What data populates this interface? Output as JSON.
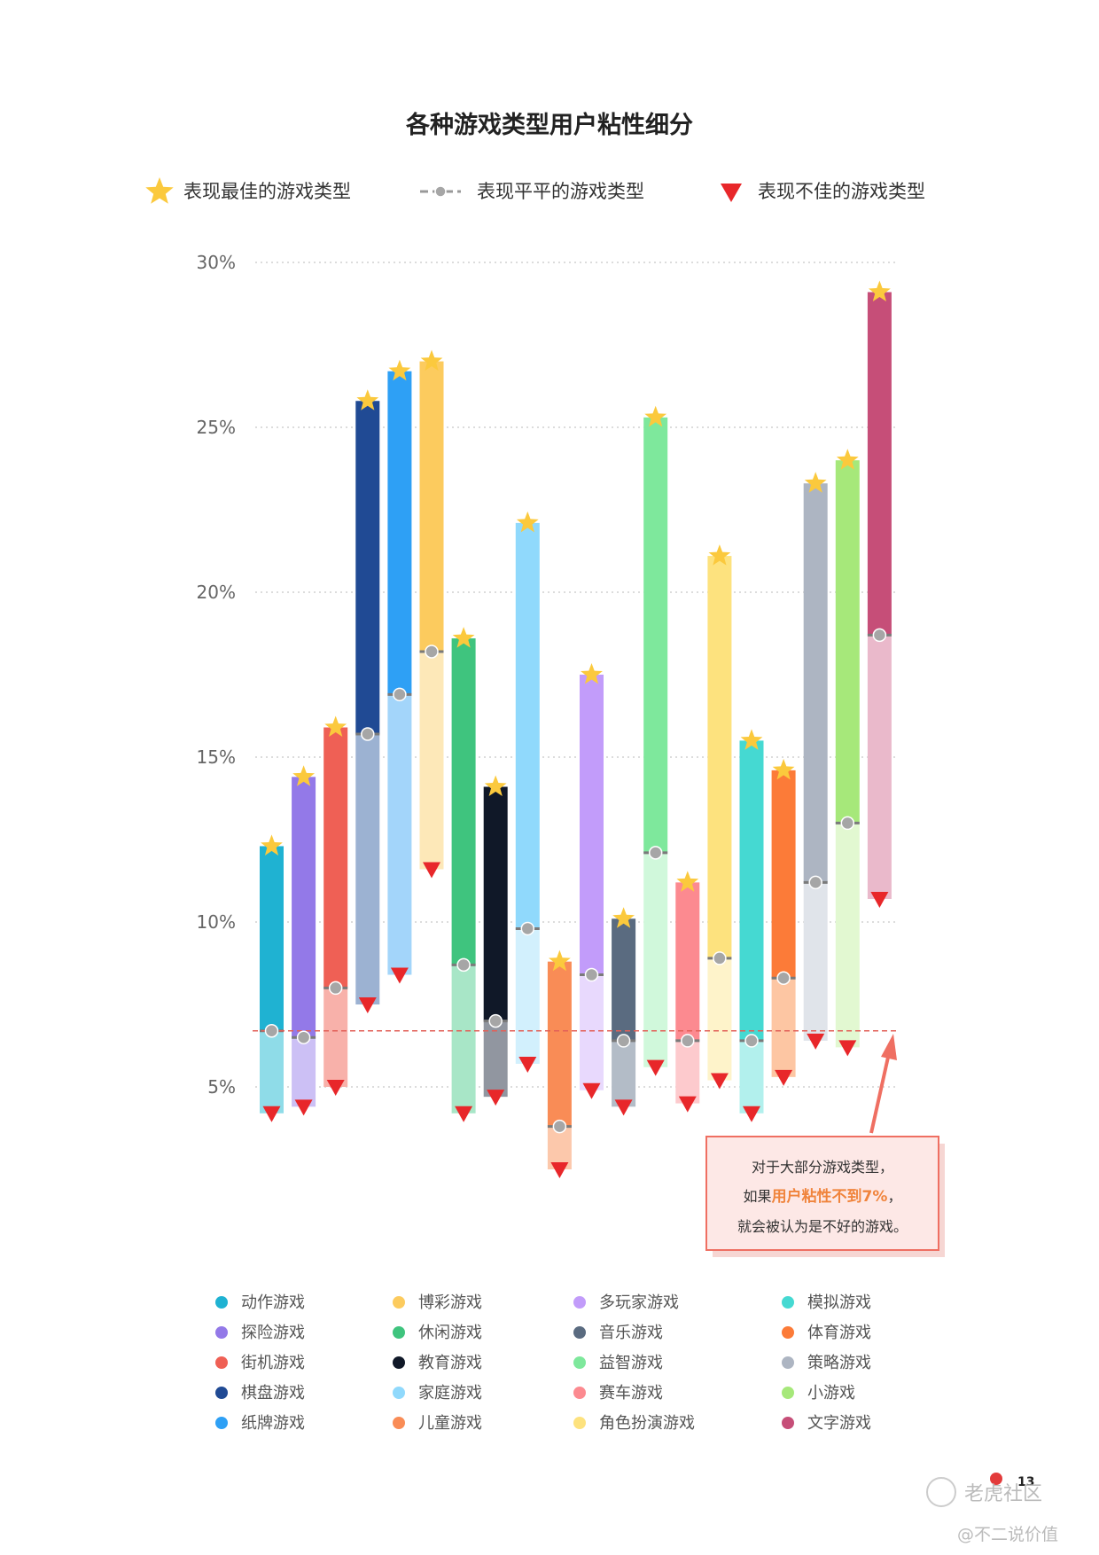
{
  "chart_data": {
    "type": "bar",
    "title": "各种游戏类型用户粘性细分",
    "legend": {
      "best": "表现最佳的游戏类型",
      "average": "表现平平的游戏类型",
      "worst": "表现不佳的游戏类型"
    },
    "ylim": [
      0,
      30
    ],
    "yticks": [
      "30%",
      "25%",
      "20%",
      "15%",
      "10%",
      "5%"
    ],
    "ytick_values": [
      30,
      25,
      20,
      15,
      10,
      5
    ],
    "threshold": 6.7,
    "categories": [
      "动作游戏",
      "探险游戏",
      "街机游戏",
      "棋盘游戏",
      "纸牌游戏",
      "博彩游戏",
      "休闲游戏",
      "教育游戏",
      "家庭游戏",
      "儿童游戏",
      "多玩家游戏",
      "音乐游戏",
      "益智游戏",
      "赛车游戏",
      "角色扮演游戏",
      "模拟游戏",
      "体育游戏",
      "策略游戏",
      "小游戏",
      "文字游戏"
    ],
    "series": [
      {
        "name": "表现最佳的游戏类型",
        "values": [
          12.3,
          14.4,
          15.9,
          25.8,
          26.7,
          27.0,
          18.6,
          14.1,
          22.1,
          8.8,
          17.5,
          10.1,
          25.3,
          11.2,
          21.1,
          15.5,
          14.6,
          23.3,
          24.0,
          29.1
        ]
      },
      {
        "name": "表现平平的游戏类型",
        "values": [
          6.7,
          6.5,
          8.0,
          15.7,
          16.9,
          18.2,
          8.7,
          7.0,
          9.8,
          3.8,
          8.4,
          6.4,
          12.1,
          6.4,
          8.9,
          6.4,
          8.3,
          11.2,
          13.0,
          18.7
        ]
      },
      {
        "name": "表现不佳的游戏类型",
        "values": [
          4.2,
          4.4,
          5.0,
          7.5,
          8.4,
          11.6,
          4.2,
          4.7,
          5.7,
          2.5,
          4.9,
          4.4,
          5.6,
          4.5,
          5.2,
          4.2,
          5.3,
          6.4,
          6.2,
          10.7
        ]
      }
    ],
    "colors": [
      "#1fb2d2",
      "#9379e8",
      "#ef6055",
      "#204a94",
      "#2ea0f5",
      "#fccb5e",
      "#3fc47e",
      "#101828",
      "#90d9fc",
      "#f98c56",
      "#c29cfa",
      "#5a6b80",
      "#7ee89c",
      "#fc8a90",
      "#fde27e",
      "#45d9d2",
      "#fc7b38",
      "#adb5c2",
      "#a6e87a",
      "#c64e78"
    ],
    "colors_mid": [
      "#7fd0e3",
      "#bdaaf0",
      "#f6a39c",
      "#8ea5c8",
      "#8ecbf8",
      "#fde1a3",
      "#9be0bb",
      "#858b95",
      "#c6ebfc",
      "#fcc0a0",
      "#e0cbfc",
      "#a8b2be",
      "#c3f5d0",
      "#fdc0c3",
      "#fdefbc",
      "#a5ecea",
      "#fdbb92",
      "#d7dbe2",
      "#d8f5c3",
      "#e4a8bd"
    ],
    "colors_low": [
      "#8fdce8",
      "#ccc0f5",
      "#f8b1aa",
      "#9cb2d2",
      "#a3d5fa",
      "#fde8b8",
      "#a8e6c7",
      "#9196a0",
      "#d2f0fd",
      "#fcc8ab",
      "#e8d9fd",
      "#b3bcc7",
      "#d0f8db",
      "#fdcacd",
      "#fef3ca",
      "#b2f0ed",
      "#fdc6a3",
      "#e0e4ea",
      "#e2f8d1",
      "#eab9cb"
    ]
  },
  "annotation": {
    "line1": "对于大部分游戏类型，",
    "line2_prefix": "如果",
    "line2_highlight": "用户粘性不到7%",
    "line2_suffix": "，",
    "line3": "就会被认为是不好的游戏。"
  },
  "footer": {
    "page_number": "13",
    "brand": "老虎社区",
    "author": "@不二说价值"
  }
}
